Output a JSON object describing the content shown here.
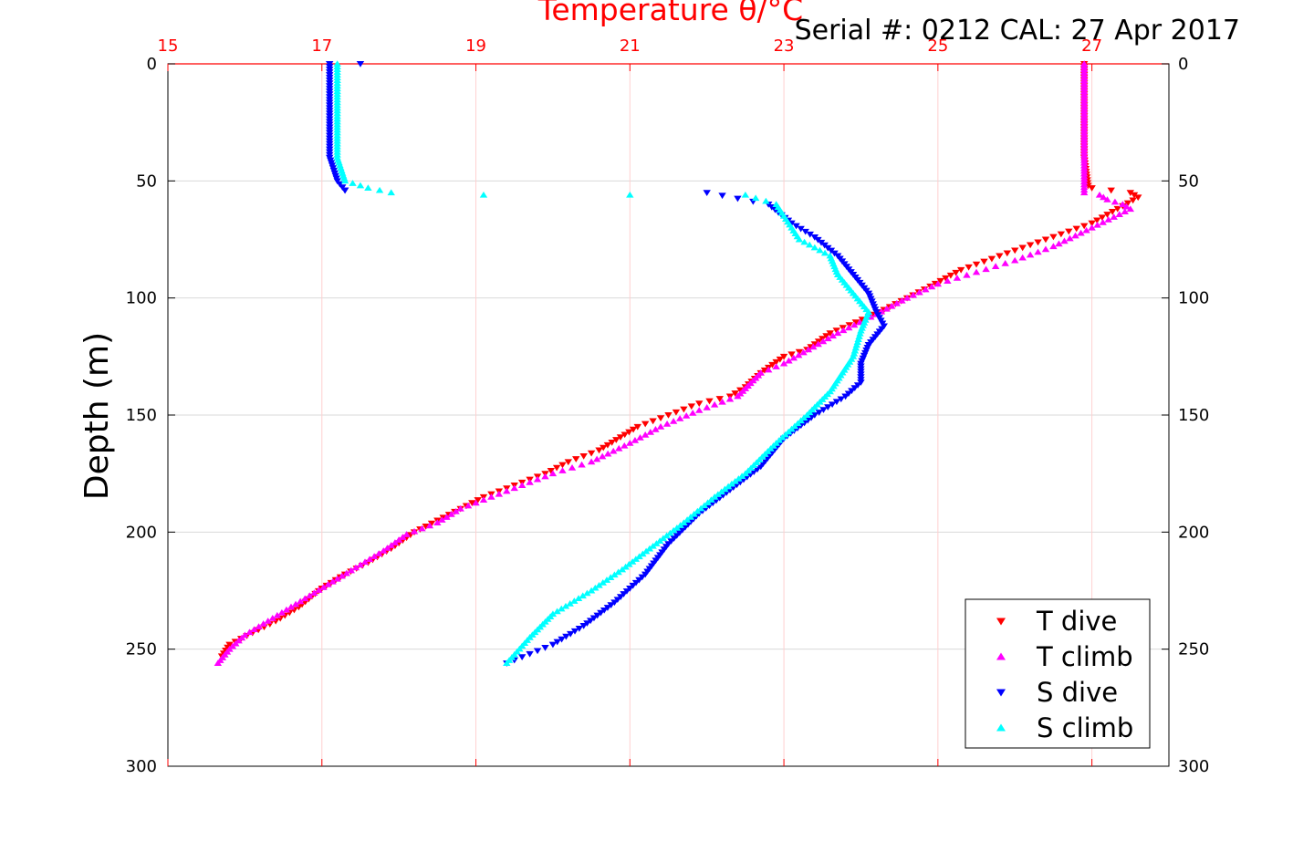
{
  "header": {
    "serial_label": "Serial #: 0212  CAL: 27 Apr 2017"
  },
  "colors": {
    "t_dive": "#ff0000",
    "t_climb": "#ff00ff",
    "s_dive": "#0000ff",
    "s_climb": "#00ffff",
    "top_axis": "#ff0000"
  },
  "chart_data": {
    "type": "scatter",
    "title": "Temperature θ/°C",
    "ylabel": "Depth (m)",
    "xlabel": "",
    "xlim": [
      15,
      28
    ],
    "xticks": [
      "15",
      "17",
      "19",
      "21",
      "23",
      "25",
      "27"
    ],
    "ylim": [
      0,
      300
    ],
    "yticks": [
      "0",
      "50",
      "100",
      "150",
      "200",
      "250",
      "300"
    ],
    "y_reversed": true,
    "grid": true,
    "legend_position": "bottom-right",
    "series": [
      {
        "name": "T dive",
        "marker": "triangle-down",
        "color": "#ff0000",
        "x": [
          26.9,
          26.9,
          26.9,
          26.95,
          27.0,
          27.5,
          27.6,
          27.0,
          26.4,
          25.8,
          25.3,
          24.9,
          24.6,
          24.3,
          24.1,
          23.6,
          23.3,
          23.0,
          22.7,
          22.5,
          22.3,
          21.9,
          21.5,
          21.1,
          20.6,
          20.2,
          19.9,
          19.5,
          19.1,
          18.8,
          18.5,
          18.2,
          17.9,
          17.6,
          17.3,
          17.0,
          16.7,
          16.4,
          16.1,
          15.8,
          15.7
        ],
        "y": [
          0,
          20,
          40,
          52,
          53,
          55,
          57,
          68,
          75,
          82,
          88,
          95,
          100,
          105,
          108,
          115,
          122,
          125,
          132,
          138,
          142,
          145,
          150,
          155,
          165,
          170,
          175,
          180,
          185,
          190,
          195,
          200,
          207,
          213,
          218,
          224,
          232,
          238,
          243,
          248,
          253
        ]
      },
      {
        "name": "T climb",
        "marker": "triangle-up",
        "color": "#ff00ff",
        "x": [
          26.9,
          26.9,
          26.9,
          26.9,
          27.1,
          27.2,
          27.4,
          27.5,
          27.0,
          26.5,
          26.0,
          25.5,
          25.0,
          24.6,
          24.2,
          23.7,
          23.0,
          22.7,
          22.4,
          21.9,
          21.4,
          21.0,
          20.5,
          20.0,
          19.6,
          19.2,
          18.8,
          18.5,
          18.1,
          17.8,
          17.5,
          17.2,
          16.9,
          16.6,
          16.3,
          16.0,
          15.8,
          15.65
        ],
        "y": [
          0,
          20,
          40,
          55,
          56,
          58,
          60,
          62,
          70,
          78,
          84,
          89,
          94,
          100,
          107,
          115,
          128,
          132,
          142,
          148,
          155,
          162,
          170,
          175,
          180,
          185,
          190,
          196,
          201,
          208,
          214,
          220,
          226,
          232,
          238,
          244,
          250,
          256
        ]
      },
      {
        "name": "S dive",
        "marker": "triangle-down",
        "color": "#0000ff",
        "x": [
          17.1,
          17.1,
          17.1,
          17.2,
          17.3,
          17.5,
          17.3,
          22.0,
          22.8,
          23.1,
          23.4,
          23.7,
          23.9,
          24.1,
          24.2,
          24.3,
          24.1,
          24.0,
          24.0,
          23.8,
          23.4,
          23.0,
          22.7,
          22.3,
          21.9,
          21.5,
          21.2,
          20.8,
          20.4,
          20.0,
          19.7,
          19.4
        ],
        "y": [
          0,
          20,
          40,
          50,
          54,
          0,
          54,
          55,
          60,
          68,
          74,
          82,
          90,
          98,
          106,
          112,
          120,
          128,
          136,
          142,
          150,
          160,
          172,
          182,
          192,
          205,
          218,
          230,
          240,
          248,
          252,
          256
        ]
      },
      {
        "name": "S climb",
        "marker": "triangle-up",
        "color": "#00ffff",
        "x": [
          17.2,
          17.2,
          17.2,
          17.3,
          17.6,
          17.9,
          19.1,
          21.0,
          22.5,
          22.9,
          23.0,
          23.1,
          23.2,
          23.6,
          23.7,
          23.9,
          24.1,
          24.0,
          23.9,
          23.6,
          23.3,
          22.9,
          22.5,
          22.1,
          21.7,
          21.3,
          20.9,
          20.5,
          20.0,
          19.7,
          19.4
        ],
        "y": [
          0,
          20,
          40,
          50,
          53,
          55,
          56,
          56,
          56,
          60,
          65,
          70,
          75,
          82,
          90,
          98,
          106,
          114,
          125,
          140,
          150,
          162,
          175,
          185,
          196,
          206,
          216,
          225,
          235,
          245,
          256
        ]
      }
    ]
  }
}
